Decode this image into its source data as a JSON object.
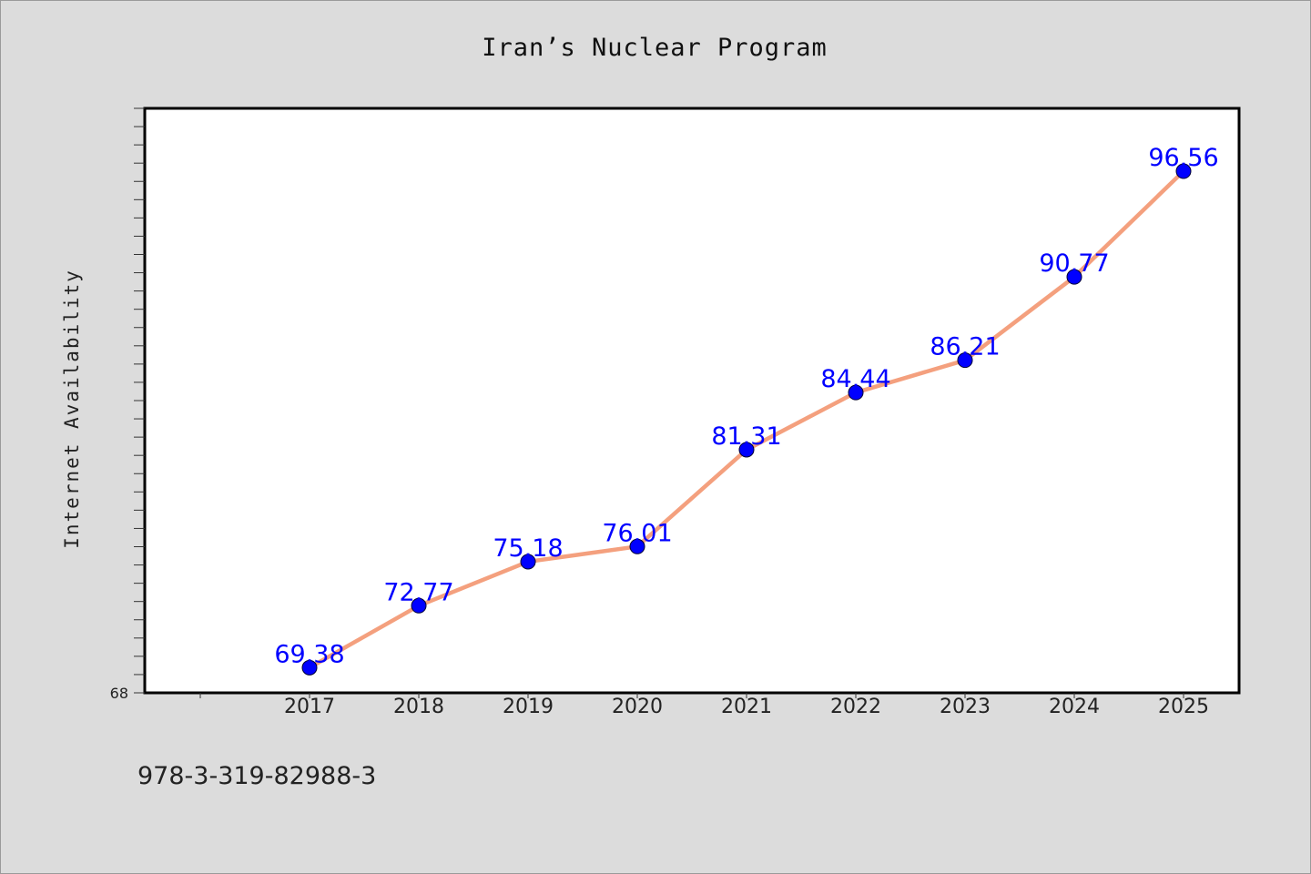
{
  "chart_data": {
    "type": "line",
    "title": "Iran’s Nuclear Program",
    "xlabel": "",
    "ylabel": "Internet Availability",
    "categories": [
      "2017",
      "2018",
      "2019",
      "2020",
      "2021",
      "2022",
      "2023",
      "2024",
      "2025"
    ],
    "series": [
      {
        "values": [
          69.38,
          72.77,
          75.18,
          76.01,
          81.31,
          84.44,
          86.21,
          90.77,
          96.56
        ],
        "labels": [
          "69.38",
          "72.77",
          "75.18",
          "76.01",
          "81.31",
          "84.44",
          "86.21",
          "90.77",
          "96.56"
        ],
        "line_color": "#f4a07e",
        "marker_color": "#0000ff"
      }
    ],
    "ylim": [
      68,
      100
    ],
    "y_tick_labels": [
      "68"
    ],
    "grid": false,
    "legend": "none"
  },
  "footer": {
    "isbn": "978-3-319-82988-3"
  },
  "colors": {
    "background": "#dcdcdc",
    "plot_area": "#ffffff",
    "data_label": "#0000ff"
  }
}
